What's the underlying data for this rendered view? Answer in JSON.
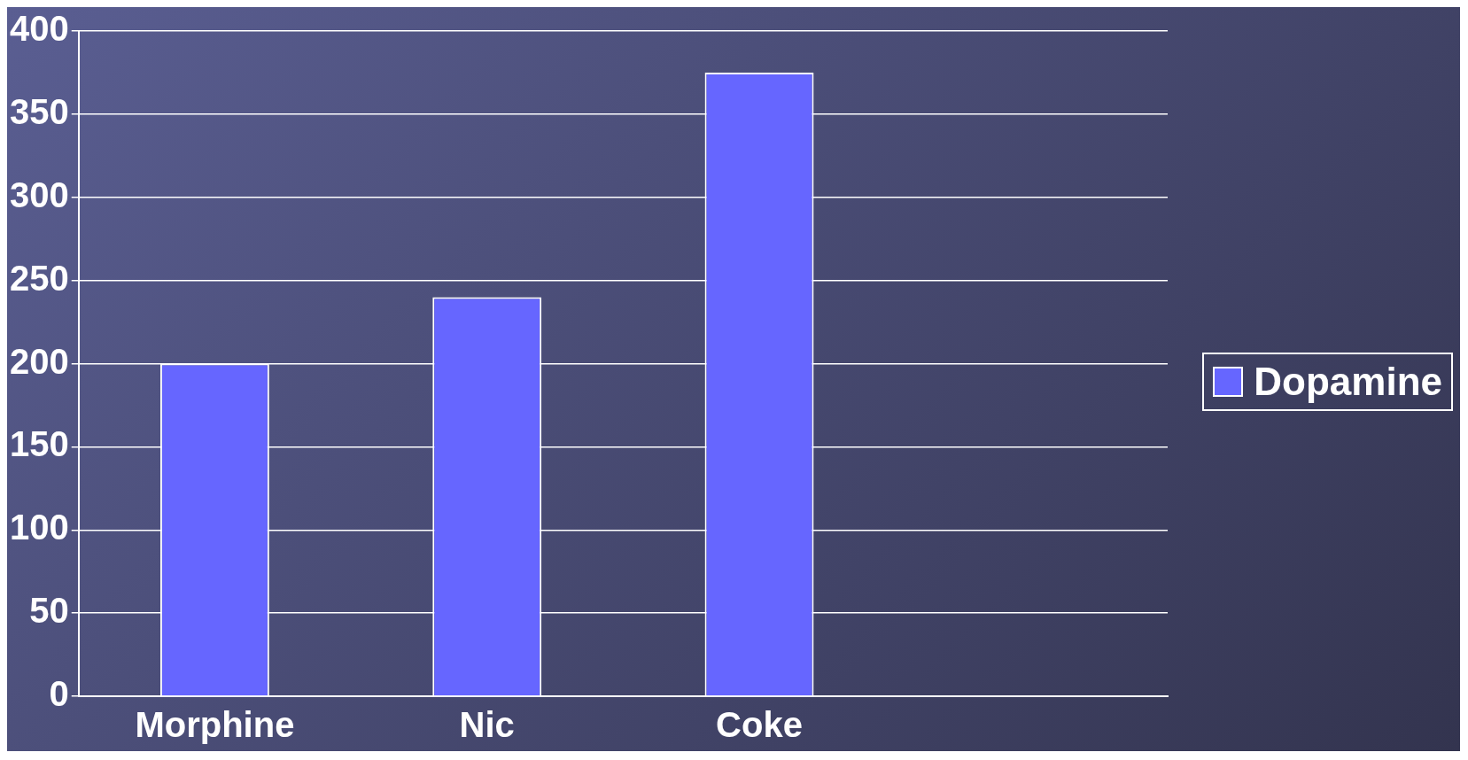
{
  "chart_data": {
    "type": "bar",
    "categories": [
      "Morphine",
      "Nic",
      "Coke",
      null
    ],
    "series": [
      {
        "name": "Dopamine",
        "color": "#6666ff",
        "values": [
          200,
          240,
          375,
          null
        ]
      }
    ],
    "ylim": [
      0,
      400
    ],
    "yticks": [
      0,
      50,
      100,
      150,
      200,
      250,
      300,
      350,
      400
    ],
    "grid": "y",
    "legend": "right"
  }
}
